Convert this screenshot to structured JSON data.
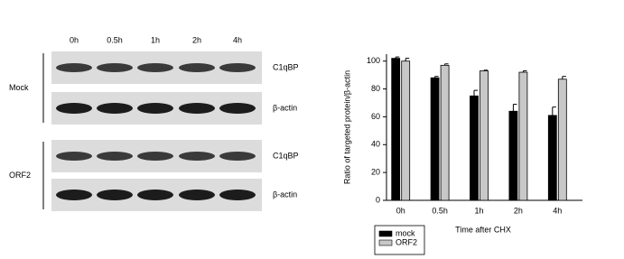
{
  "blot": {
    "time_points": [
      "0h",
      "0.5h",
      "1h",
      "2h",
      "4h"
    ],
    "groups": [
      {
        "name": "Mock",
        "rows": [
          "C1qBP",
          "β-actin"
        ]
      },
      {
        "name": "ORF2",
        "rows": [
          "C1qBP",
          "β-actin"
        ]
      }
    ]
  },
  "chart_data": {
    "type": "bar",
    "categories": [
      "0h",
      "0.5h",
      "1h",
      "2h",
      "4h"
    ],
    "series": [
      {
        "name": "mock",
        "color": "#000000",
        "values": [
          102,
          88,
          75,
          64,
          61
        ],
        "errors": [
          1,
          1,
          4,
          5,
          6
        ]
      },
      {
        "name": "ORF2",
        "color": "#c8c8c8",
        "values": [
          100,
          97,
          93,
          92,
          87
        ],
        "errors": [
          2,
          1,
          0.5,
          1,
          2
        ]
      }
    ],
    "ylim": [
      0,
      105
    ],
    "yticks": [
      0,
      20,
      40,
      60,
      80,
      100
    ],
    "ylabel": "Ratio of targeted protein/β-actin",
    "xlabel": "Time  after CHX",
    "legend": "bottom-left"
  }
}
